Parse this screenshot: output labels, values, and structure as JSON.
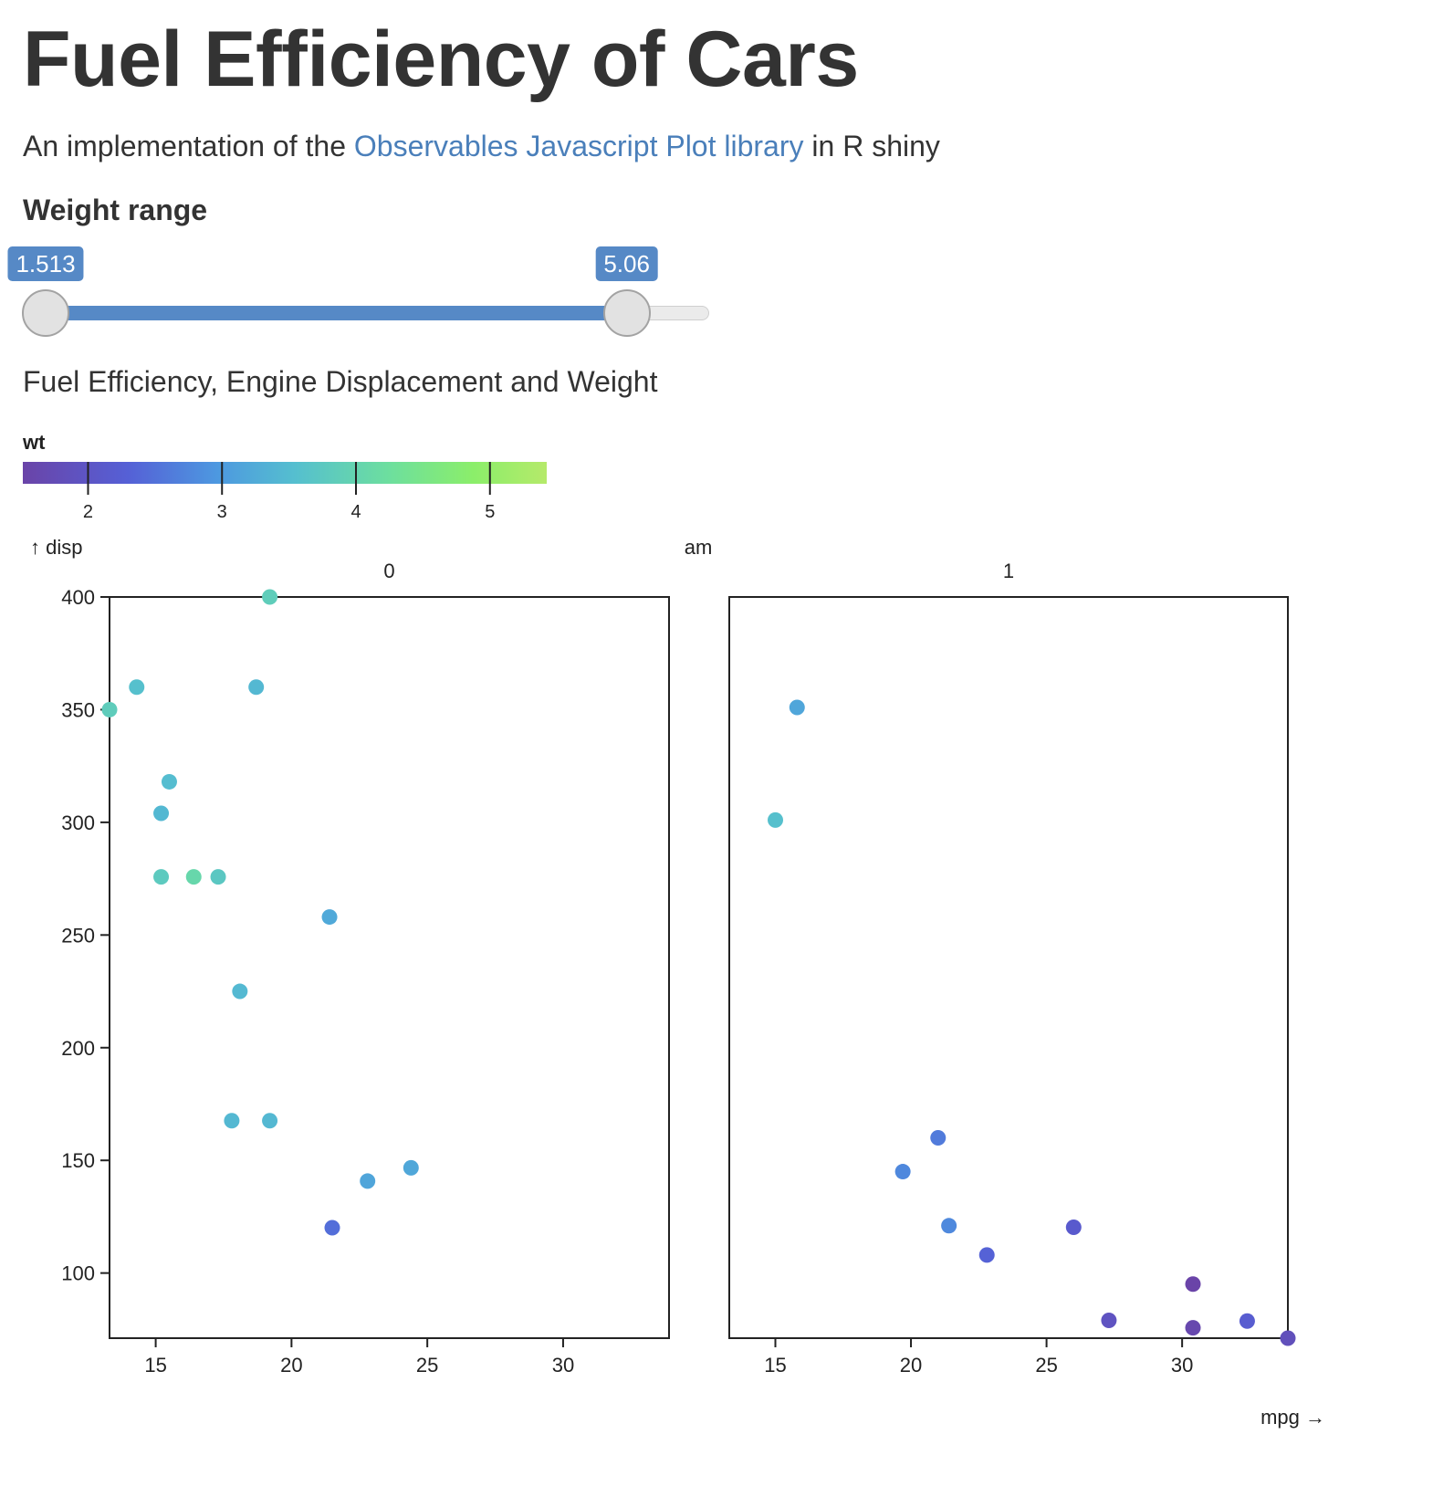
{
  "header": {
    "title": "Fuel Efficiency of Cars",
    "subtitle_before": "An implementation of the ",
    "subtitle_link": "Observables Javascript Plot library",
    "subtitle_after": " in R shiny"
  },
  "control": {
    "label": "Weight range",
    "min_label": "1.513",
    "max_label": "5.06",
    "range_min": 1.513,
    "range_max": 5.424,
    "value_low": 1.513,
    "value_high": 5.06,
    "accent_color": "#5689c6"
  },
  "plot_title": "Fuel Efficiency, Engine Displacement and Weight",
  "chart_data": {
    "type": "scatter",
    "title": "Fuel Efficiency, Engine Displacement and Weight",
    "xlabel": "mpg →",
    "ylabel": "↑ disp",
    "facet_label": "am",
    "facets": [
      "0",
      "1"
    ],
    "xlim": [
      13.3,
      33.9
    ],
    "ylim": [
      71.1,
      400
    ],
    "x_ticks": [
      15,
      20,
      25,
      30
    ],
    "y_ticks": [
      100,
      150,
      200,
      250,
      300,
      350,
      400
    ],
    "grid": false,
    "color_legend": {
      "title": "wt",
      "domain": [
        1.513,
        5.424
      ],
      "ticks": [
        2,
        3,
        4,
        5
      ],
      "scheme": "turbo-like (purple → blue → teal → green → yellow-green)"
    },
    "series": [
      {
        "name": "0",
        "x": [
          13.3,
          14.3,
          15.5,
          15.2,
          15.2,
          16.4,
          17.3,
          18.7,
          19.2,
          21.4,
          18.1,
          17.8,
          19.2,
          22.8,
          24.4,
          21.5
        ],
        "y": [
          350,
          360,
          318,
          304,
          275.8,
          275.8,
          275.8,
          360,
          400,
          258,
          225,
          167.6,
          167.6,
          140.8,
          146.7,
          120.1
        ],
        "wt": [
          3.84,
          3.57,
          3.52,
          3.435,
          3.78,
          4.07,
          3.73,
          3.44,
          3.845,
          3.215,
          3.46,
          3.44,
          3.44,
          3.15,
          3.19,
          2.465
        ]
      },
      {
        "name": "1",
        "x": [
          15.8,
          15.0,
          21.0,
          19.7,
          21.4,
          22.8,
          26.0,
          27.3,
          30.4,
          30.4,
          32.4,
          33.9
        ],
        "y": [
          351,
          301,
          160,
          145,
          121,
          108,
          120.3,
          79,
          95.1,
          75.7,
          78.7,
          71.1
        ],
        "wt": [
          3.17,
          3.57,
          2.62,
          2.77,
          2.78,
          2.32,
          2.14,
          1.935,
          1.513,
          1.615,
          2.2,
          1.835
        ]
      }
    ]
  }
}
